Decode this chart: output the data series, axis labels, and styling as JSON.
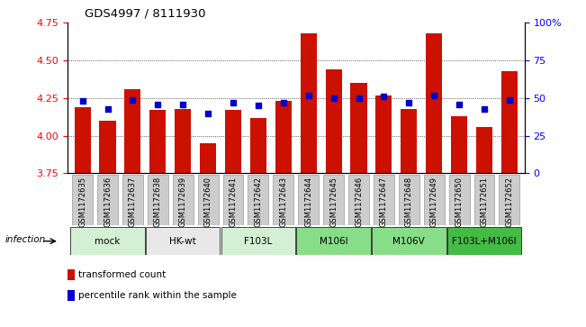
{
  "title": "GDS4997 / 8111930",
  "samples": [
    "GSM1172635",
    "GSM1172636",
    "GSM1172637",
    "GSM1172638",
    "GSM1172639",
    "GSM1172640",
    "GSM1172641",
    "GSM1172642",
    "GSM1172643",
    "GSM1172644",
    "GSM1172645",
    "GSM1172646",
    "GSM1172647",
    "GSM1172648",
    "GSM1172649",
    "GSM1172650",
    "GSM1172651",
    "GSM1172652"
  ],
  "transformed_count": [
    4.19,
    4.1,
    4.31,
    4.17,
    4.18,
    3.95,
    4.17,
    4.12,
    4.23,
    4.68,
    4.44,
    4.35,
    4.27,
    4.18,
    4.68,
    4.13,
    4.06,
    4.43
  ],
  "percentile_rank": [
    48,
    43,
    49,
    46,
    46,
    40,
    47,
    45,
    47,
    52,
    50,
    50,
    51,
    47,
    52,
    46,
    43,
    49
  ],
  "groups": [
    {
      "label": "mock",
      "start": 0,
      "end": 2,
      "color": "#d4f0d4"
    },
    {
      "label": "HK-wt",
      "start": 3,
      "end": 5,
      "color": "#e8e8e8"
    },
    {
      "label": "F103L",
      "start": 6,
      "end": 8,
      "color": "#d4f0d4"
    },
    {
      "label": "M106I",
      "start": 9,
      "end": 11,
      "color": "#88dd88"
    },
    {
      "label": "M106V",
      "start": 12,
      "end": 14,
      "color": "#88dd88"
    },
    {
      "label": "F103L+M106I",
      "start": 15,
      "end": 17,
      "color": "#44bb44"
    }
  ],
  "ylim_left": [
    3.75,
    4.75
  ],
  "ylim_right": [
    0,
    100
  ],
  "yticks_left": [
    3.75,
    4.0,
    4.25,
    4.5,
    4.75
  ],
  "yticks_right": [
    0,
    25,
    50,
    75,
    100
  ],
  "bar_color": "#cc1100",
  "dot_color": "#0000cc",
  "bar_bottom": 3.75,
  "bar_width": 0.65,
  "sample_box_color": "#cccccc",
  "sample_box_edge": "#999999",
  "legend_items": [
    {
      "label": "transformed count",
      "color": "#cc1100"
    },
    {
      "label": "percentile rank within the sample",
      "color": "#0000cc"
    }
  ],
  "infection_label": "infection"
}
